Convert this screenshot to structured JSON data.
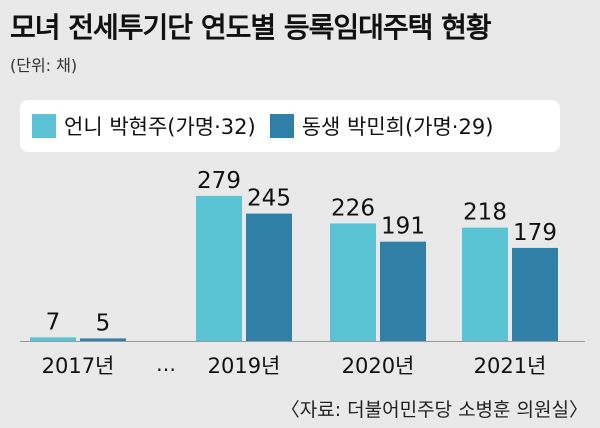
{
  "title": "모녀 전세투기단 연도별 등록임대주택 현황",
  "unit": "(단위: 채)",
  "source": "〈자료: 더불어민주당 소병훈 의원실〉",
  "ellipsis": "…",
  "colors": {
    "series1": "#5ac4d4",
    "series2": "#2f7fa6",
    "background": "#e9e9e9"
  },
  "chart_data": {
    "type": "bar",
    "categories": [
      "2017년",
      "2019년",
      "2020년",
      "2021년"
    ],
    "series": [
      {
        "name": "언니 박현주(가명·32)",
        "values": [
          7,
          279,
          226,
          218
        ]
      },
      {
        "name": "동생 박민희(가명·29)",
        "values": [
          5,
          245,
          191,
          179
        ]
      }
    ],
    "legend": "top-left",
    "grid": false,
    "axes_shown": false
  }
}
